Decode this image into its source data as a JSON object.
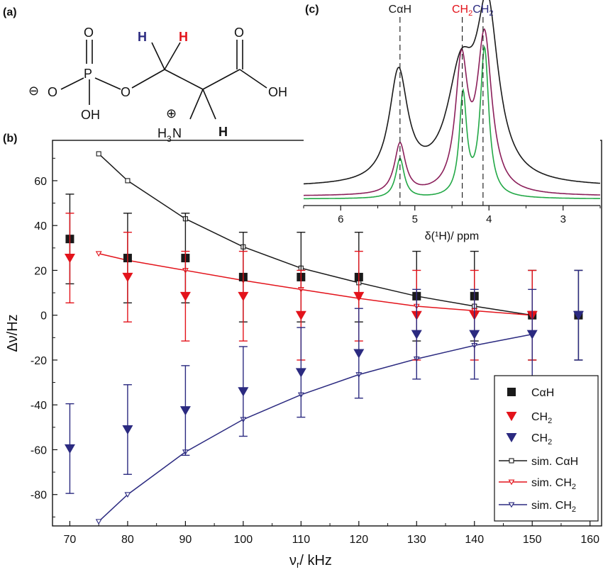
{
  "panel_labels": {
    "a": "(a)",
    "b": "(b)",
    "c": "(c)"
  },
  "molecule": {
    "O_top_P": "O",
    "P": "P",
    "O_minus": "O",
    "minus_sign": "⊖",
    "O_bridge": "O",
    "OH_P": "OH",
    "H_blue": "H",
    "H_red": "H",
    "O_carbonyl": "O",
    "OH_acid": "OH",
    "plus_sign": "⊕",
    "NH3_H": "H",
    "NH3_sub": "3",
    "NH3_N": "N",
    "H_black": "H"
  },
  "colors": {
    "black": "#1a1a1a",
    "red": "#e3131b",
    "blue": "#2b2a80",
    "purple": "#8b1f5a",
    "green": "#22a846"
  },
  "chart_data": [
    {
      "type": "scatter",
      "xlabel_main": "ν",
      "xlabel_sub": "r",
      "xlabel_rest": "/ kHz",
      "ylabel": "Δν/Hz",
      "xlim": [
        67,
        162
      ],
      "ylim": [
        -94,
        78
      ],
      "xticks": [
        70,
        80,
        90,
        100,
        110,
        120,
        130,
        140,
        150,
        160
      ],
      "yticks": [
        60,
        40,
        20,
        0,
        -20,
        -40,
        -60,
        -80
      ],
      "grid": false,
      "legend_position": "bottom-right",
      "legend": [
        {
          "label": "CαH",
          "sub": "",
          "marker": "square-filled",
          "color": "#1a1a1a"
        },
        {
          "label": "CH",
          "sub": "2",
          "marker": "triangle-filled",
          "color": "#e3131b"
        },
        {
          "label": "CH",
          "sub": "2",
          "marker": "triangle-filled",
          "color": "#2b2a80"
        },
        {
          "label": "sim. CαH",
          "sub": "",
          "marker": "square-open-line",
          "color": "#1a1a1a"
        },
        {
          "label": "sim. CH",
          "sub": "2",
          "marker": "triangle-open-line",
          "color": "#e3131b"
        },
        {
          "label": "sim. CH",
          "sub": "2",
          "marker": "triangle-open-line",
          "color": "#2b2a80"
        }
      ],
      "series": [
        {
          "name": "CαH",
          "kind": "data",
          "marker": "square",
          "color": "#1a1a1a",
          "x": [
            70,
            80,
            90,
            100,
            110,
            120,
            130,
            140,
            150,
            158
          ],
          "y": [
            34,
            25.5,
            25.5,
            17,
            17,
            17,
            8.5,
            8.5,
            0,
            0
          ],
          "err": [
            20,
            20,
            20,
            20,
            20,
            20,
            20,
            20,
            20,
            20
          ]
        },
        {
          "name": "CH2",
          "kind": "data",
          "marker": "triangle",
          "color": "#e3131b",
          "x": [
            70,
            80,
            90,
            100,
            110,
            120,
            130,
            140,
            150
          ],
          "y": [
            25.5,
            17,
            8.5,
            8.5,
            0,
            8.5,
            0,
            0,
            0
          ],
          "err": [
            20,
            20,
            20,
            20,
            20,
            20,
            20,
            20,
            20
          ]
        },
        {
          "name": "CH2",
          "kind": "data",
          "marker": "triangle",
          "color": "#2b2a80",
          "x": [
            70,
            80,
            90,
            100,
            110,
            120,
            130,
            140,
            150,
            158
          ],
          "y": [
            -59.5,
            -51,
            -42.5,
            -34,
            -25.5,
            -17,
            -8.5,
            -8.5,
            -8.5,
            0
          ],
          "err": [
            20,
            20,
            20,
            20,
            20,
            20,
            20,
            20,
            20,
            20
          ]
        },
        {
          "name": "sim. CαH",
          "kind": "sim",
          "marker": "square-open",
          "color": "#1a1a1a",
          "x": [
            75,
            80,
            90,
            100,
            110,
            120,
            130,
            140,
            150
          ],
          "y": [
            72,
            60,
            43,
            30.5,
            21,
            14.5,
            8.5,
            4,
            0
          ]
        },
        {
          "name": "sim. CH2",
          "kind": "sim",
          "marker": "triangle-open",
          "color": "#e3131b",
          "x": [
            75,
            80,
            90,
            100,
            110,
            120,
            130,
            140,
            150
          ],
          "y": [
            27.5,
            24.5,
            20,
            15.5,
            11.5,
            7.5,
            4,
            2,
            0
          ]
        },
        {
          "name": "sim. CH2",
          "kind": "sim",
          "marker": "triangle-open",
          "color": "#2b2a80",
          "x": [
            75,
            80,
            90,
            100,
            110,
            120,
            130,
            140,
            150
          ],
          "y": [
            -92,
            -80,
            -61,
            -46.5,
            -35.5,
            -26.5,
            -19.5,
            -13.5,
            -8.5
          ]
        }
      ]
    },
    {
      "type": "line",
      "xlabel": "δ(¹H)/ ppm",
      "xlim": [
        6.5,
        2.5
      ],
      "xticks": [
        6,
        5,
        4,
        3
      ],
      "dashed_markers": [
        {
          "x": 5.2,
          "label": "CαH",
          "color": "#1a1a1a"
        },
        {
          "x": 4.36,
          "label": "CH",
          "sub": "2",
          "color": "#e3131b"
        },
        {
          "x": 4.08,
          "label": "CH",
          "sub": "2",
          "color": "#2b2a80"
        }
      ],
      "series": [
        {
          "color": "#1a1a1a",
          "baseline": 0.07,
          "peaks": [
            [
              5.22,
              0.61,
              0.15
            ],
            [
              4.38,
              0.56,
              0.22
            ],
            [
              4.02,
              0.92,
              0.18
            ]
          ]
        },
        {
          "color": "#8b1f5a",
          "baseline": 0.02,
          "peaks": [
            [
              5.2,
              0.28,
              0.09
            ],
            [
              4.37,
              0.7,
              0.1
            ],
            [
              4.06,
              0.86,
              0.12
            ]
          ]
        },
        {
          "color": "#22a846",
          "baseline": 0.005,
          "peaks": [
            [
              5.2,
              0.22,
              0.07
            ],
            [
              4.35,
              0.56,
              0.06
            ],
            [
              4.06,
              0.82,
              0.07
            ]
          ]
        }
      ]
    }
  ]
}
